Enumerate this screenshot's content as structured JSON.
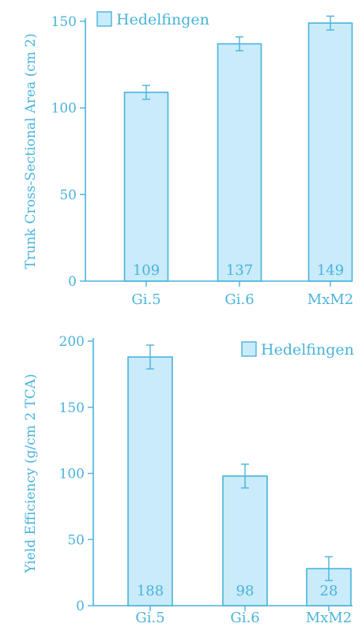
{
  "chart_data": [
    {
      "type": "bar",
      "categories": [
        "Gi.5",
        "Gi.6",
        "MxM2"
      ],
      "series": [
        {
          "name": "Hedelfingen",
          "values": [
            109,
            137,
            149
          ],
          "errors": [
            4,
            4,
            4
          ]
        }
      ],
      "data_labels": [
        "109",
        "137",
        "149"
      ],
      "ylabel": "Trunk Cross-Sectional Area (cm 2)",
      "ylim": [
        0,
        150
      ],
      "yticks": [
        0,
        50,
        100,
        150
      ],
      "legend": "top-left",
      "grid": false,
      "colors": {
        "fill": "#c9ebfa",
        "stroke": "#49b3db"
      }
    },
    {
      "type": "bar",
      "categories": [
        "Gi.5",
        "Gi.6",
        "MxM2"
      ],
      "series": [
        {
          "name": "Hedelfingen",
          "values": [
            188,
            98,
            28
          ],
          "errors": [
            9,
            9,
            9
          ]
        }
      ],
      "data_labels": [
        "188",
        "98",
        "28"
      ],
      "ylabel": "Yield Efficiency (g/cm 2 TCA)",
      "ylim": [
        0,
        200
      ],
      "yticks": [
        0,
        50,
        100,
        150,
        200
      ],
      "legend": "top-right",
      "grid": false,
      "colors": {
        "fill": "#c9ebfa",
        "stroke": "#49b3db"
      }
    }
  ]
}
